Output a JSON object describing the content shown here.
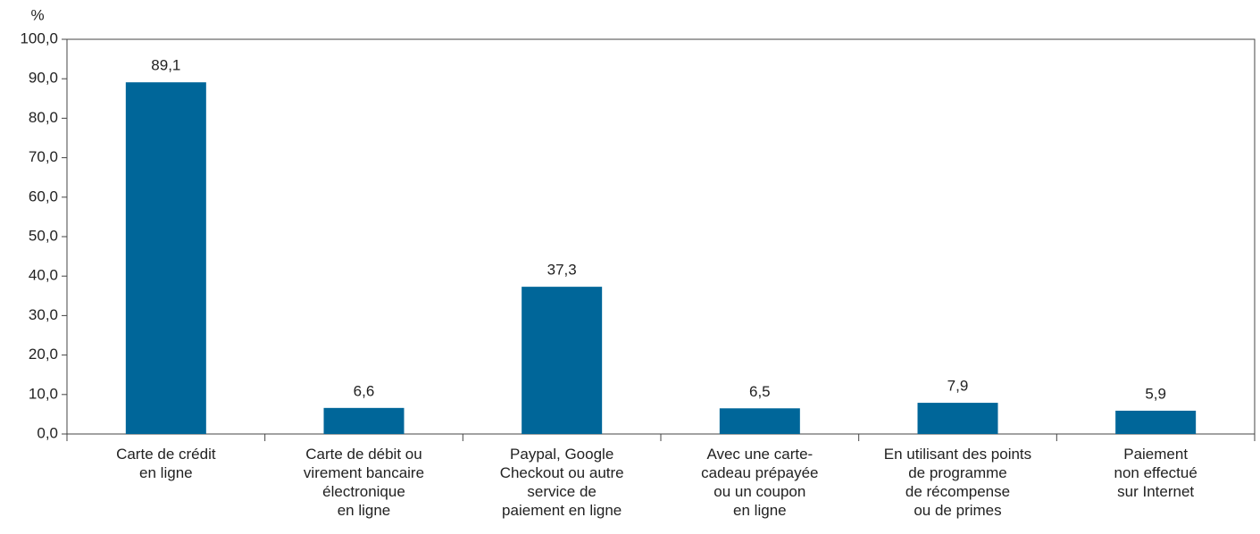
{
  "chart_data": {
    "type": "bar",
    "y_label": "%",
    "categories": [
      "Carte de crédit\nen ligne",
      "Carte de débit ou\nvirement bancaire\nélectronique\nen ligne",
      "Paypal, Google\nCheckout ou autre\nservice de\npaiement en ligne",
      "Avec une carte-\ncadeau prépayée\nou un coupon\nen ligne",
      "En utilisant des points\nde programme\nde récompense\nou de primes",
      "Paiement\nnon effectué\nsur Internet"
    ],
    "values": [
      89.1,
      6.6,
      37.3,
      6.5,
      7.9,
      5.9
    ],
    "value_labels": [
      "89,1",
      "6,6",
      "37,3",
      "6,5",
      "7,9",
      "5,9"
    ],
    "color": "#006699",
    "ylim": [
      0,
      100
    ],
    "yticks": [
      {
        "value": 0,
        "label": "0,0"
      },
      {
        "value": 10,
        "label": "10,0"
      },
      {
        "value": 20,
        "label": "20,0"
      },
      {
        "value": 30,
        "label": "30,0"
      },
      {
        "value": 40,
        "label": "40,0"
      },
      {
        "value": 50,
        "label": "50,0"
      },
      {
        "value": 60,
        "label": "60,0"
      },
      {
        "value": 70,
        "label": "70,0"
      },
      {
        "value": 80,
        "label": "80,0"
      },
      {
        "value": 90,
        "label": "90,0"
      },
      {
        "value": 100,
        "label": "100,0"
      }
    ],
    "grid": false
  }
}
